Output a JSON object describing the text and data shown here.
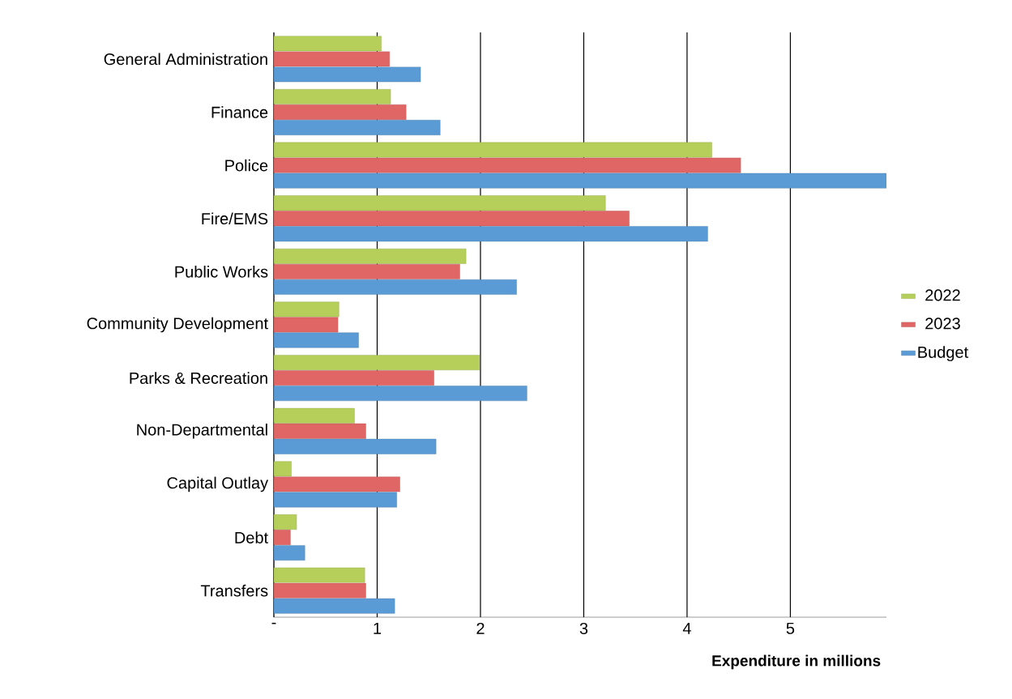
{
  "chart_data": {
    "type": "bar",
    "orientation": "horizontal",
    "xlabel": "Expenditure in millions",
    "categories": [
      "General Administration",
      "Finance",
      "Police",
      "Fire/EMS",
      "Public Works",
      "Community Development",
      "Parks & Recreation",
      "Non-Departmental",
      "Capital Outlay",
      "Debt",
      "Transfers"
    ],
    "series": [
      {
        "name": "2022",
        "color": "#b5cf5a",
        "values": [
          1.04,
          1.13,
          4.24,
          3.21,
          1.86,
          0.63,
          1.99,
          0.78,
          0.17,
          0.22,
          0.88
        ]
      },
      {
        "name": "2023",
        "color": "#e06666",
        "values": [
          1.12,
          1.28,
          4.52,
          3.44,
          1.8,
          0.62,
          1.55,
          0.89,
          1.22,
          0.16,
          0.89
        ]
      },
      {
        "name": "Budget",
        "color": "#5b9bd5",
        "values": [
          1.42,
          1.61,
          5.93,
          4.2,
          2.35,
          0.82,
          2.45,
          1.57,
          1.19,
          0.3,
          1.17
        ]
      }
    ],
    "xlim": [
      0,
      5.93
    ],
    "xticks": [
      {
        "value": 0,
        "label": "-"
      },
      1,
      2,
      3,
      4,
      5
    ],
    "grid": "x",
    "legend": "right"
  }
}
